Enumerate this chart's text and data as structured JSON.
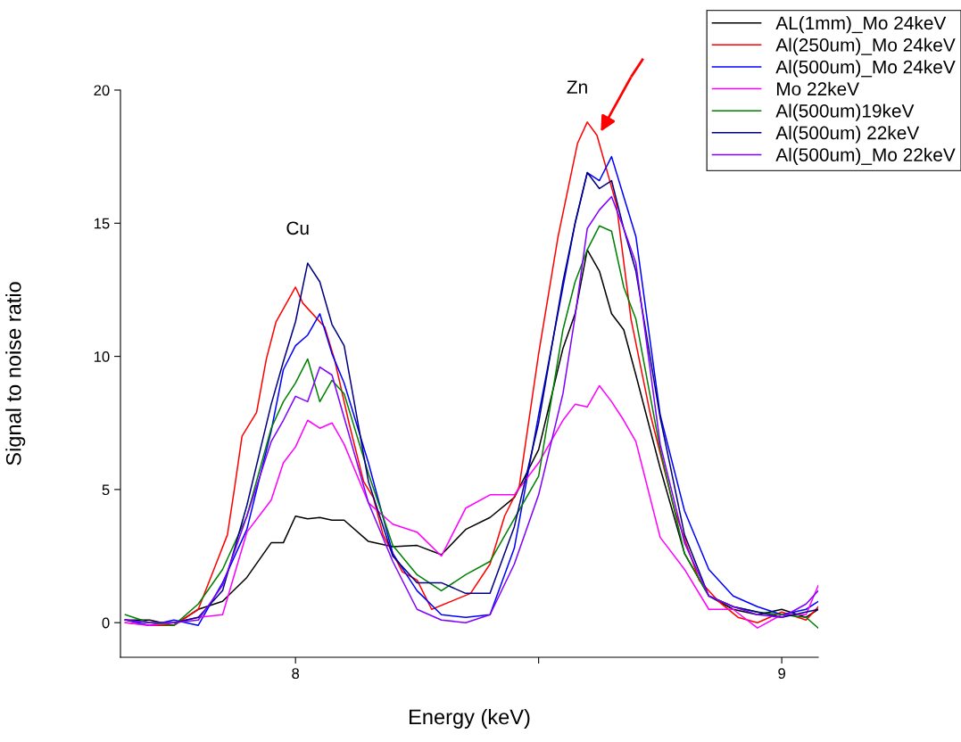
{
  "chart_data": {
    "type": "line",
    "xlabel": "Energy (keV)",
    "ylabel": "Signal to noise ratio",
    "x": [
      7.65,
      7.7,
      7.75,
      7.8,
      7.85,
      7.9,
      7.95,
      7.975,
      8.0,
      8.025,
      8.05,
      8.075,
      8.1,
      8.15,
      8.2,
      8.25,
      8.3,
      8.35,
      8.4,
      8.45,
      8.5,
      8.55,
      8.575,
      8.6,
      8.625,
      8.65,
      8.675,
      8.7,
      8.75,
      8.8,
      8.85,
      8.9,
      8.95,
      9.0,
      9.05,
      9.075
    ],
    "series": [
      {
        "name": "AL(1mm)_Mo 24keV",
        "color": "#000000",
        "values": [
          0.1,
          0.1,
          -0.1,
          0.5,
          0.8,
          1.7,
          3.0,
          3.0,
          4.0,
          3.9,
          3.95,
          3.85,
          3.85,
          3.05,
          2.85,
          2.9,
          2.55,
          3.5,
          3.95,
          4.7,
          6.5,
          10.3,
          11.6,
          14.0,
          13.2,
          11.6,
          11.0,
          9.3,
          5.8,
          2.6,
          1.0,
          0.5,
          0.3,
          0.5,
          0.2,
          0.5
        ]
      },
      {
        "name": "Al(250um)_Mo 24keV",
        "color": "#ff0000",
        "x": [
          7.65,
          7.7,
          7.75,
          7.8,
          7.83,
          7.86,
          7.875,
          7.89,
          7.92,
          7.94,
          7.96,
          8.0,
          8.015,
          8.06,
          8.08,
          8.11,
          8.14,
          8.16,
          8.18,
          8.22,
          8.25,
          8.28,
          8.36,
          8.4,
          8.43,
          8.46,
          8.5,
          8.54,
          8.58,
          8.6,
          8.62,
          8.66,
          8.69,
          8.73,
          8.78,
          8.83,
          8.87,
          8.91,
          8.95,
          9.0,
          9.05,
          9.075
        ],
        "values": [
          0,
          -0.1,
          -0.1,
          0.5,
          1.9,
          3.3,
          5.1,
          7.0,
          7.9,
          9.9,
          11.3,
          12.6,
          12.0,
          11.1,
          9.9,
          7.5,
          5.3,
          4.7,
          3.3,
          1.9,
          1.6,
          0.5,
          1.1,
          2.2,
          4.0,
          5.1,
          10.1,
          14.5,
          18.0,
          18.8,
          18.3,
          15.7,
          11.4,
          7.8,
          4.2,
          1.6,
          0.8,
          0.2,
          0.0,
          0.4,
          0.1,
          0.6
        ]
      },
      {
        "name": "Al(500um)_Mo 24keV",
        "color": "#0000ff",
        "values": [
          0.1,
          -0.1,
          0.1,
          -0.1,
          1.5,
          3.5,
          7.2,
          9.5,
          10.4,
          10.8,
          11.6,
          10.1,
          9.0,
          6.0,
          2.6,
          1.2,
          0.3,
          0.2,
          0.3,
          2.8,
          7.8,
          12.6,
          15.0,
          16.9,
          16.6,
          17.5,
          16.0,
          14.5,
          7.8,
          4.2,
          2.0,
          1.0,
          0.6,
          0.3,
          0.5,
          0.8
        ]
      },
      {
        "name": "Mo 22keV",
        "color": "#ff00ff",
        "values": [
          0,
          -0.1,
          0,
          0.2,
          0.3,
          3.4,
          4.6,
          6.0,
          6.6,
          7.6,
          7.3,
          7.5,
          6.7,
          4.5,
          3.7,
          3.4,
          2.5,
          4.3,
          4.8,
          4.8,
          6.0,
          7.6,
          8.2,
          8.1,
          8.9,
          8.3,
          7.6,
          6.8,
          3.2,
          2.0,
          0.5,
          0.5,
          -0.2,
          0.3,
          0.3,
          1.4
        ]
      },
      {
        "name": "Al(500um)19keV",
        "color": "#008000",
        "values": [
          0.3,
          0,
          -0.1,
          0.7,
          2.0,
          4.0,
          7.3,
          8.3,
          9.0,
          9.9,
          8.3,
          9.1,
          8.6,
          5.6,
          2.9,
          1.8,
          1.2,
          1.8,
          2.3,
          3.9,
          5.5,
          11.0,
          12.8,
          14.0,
          14.9,
          14.7,
          12.6,
          11.4,
          6.5,
          2.6,
          1.0,
          0.6,
          0.4,
          0.3,
          0.2,
          -0.2
        ]
      },
      {
        "name": "Al(500um) 22keV",
        "color": "#000080",
        "values": [
          0.1,
          0,
          0,
          0.2,
          1.2,
          4.4,
          8.2,
          9.8,
          11.3,
          13.5,
          12.8,
          11.2,
          10.4,
          5.3,
          2.5,
          1.5,
          1.5,
          1.1,
          1.1,
          3.6,
          7.5,
          12.8,
          15.0,
          16.9,
          16.3,
          16.6,
          14.8,
          13.2,
          7.7,
          3.3,
          1.0,
          0.6,
          0.4,
          0.2,
          0.4,
          0.5
        ]
      },
      {
        "name": "Al(500um)_Mo 22keV",
        "color": "#8000ff",
        "values": [
          0.1,
          0,
          0,
          0.1,
          1.4,
          4.0,
          6.8,
          7.6,
          8.5,
          8.3,
          9.6,
          9.3,
          7.7,
          4.5,
          2.3,
          0.5,
          0.1,
          0,
          0.3,
          2.2,
          4.8,
          8.6,
          11.5,
          14.8,
          15.5,
          16.0,
          14.8,
          13.5,
          6.7,
          3.0,
          1.0,
          0.6,
          0.3,
          0.2,
          0.7,
          1.2
        ]
      }
    ],
    "xlim": [
      7.64,
      9.075
    ],
    "xticks": [
      8,
      {
        "value": 8.5,
        "label": null
      },
      9
    ],
    "ylim": [
      -1.3,
      20
    ],
    "yticks": [
      0,
      5,
      10,
      15,
      20
    ],
    "annotations": [
      "Cu",
      "Zn"
    ],
    "grid": false,
    "legend": "top right"
  }
}
